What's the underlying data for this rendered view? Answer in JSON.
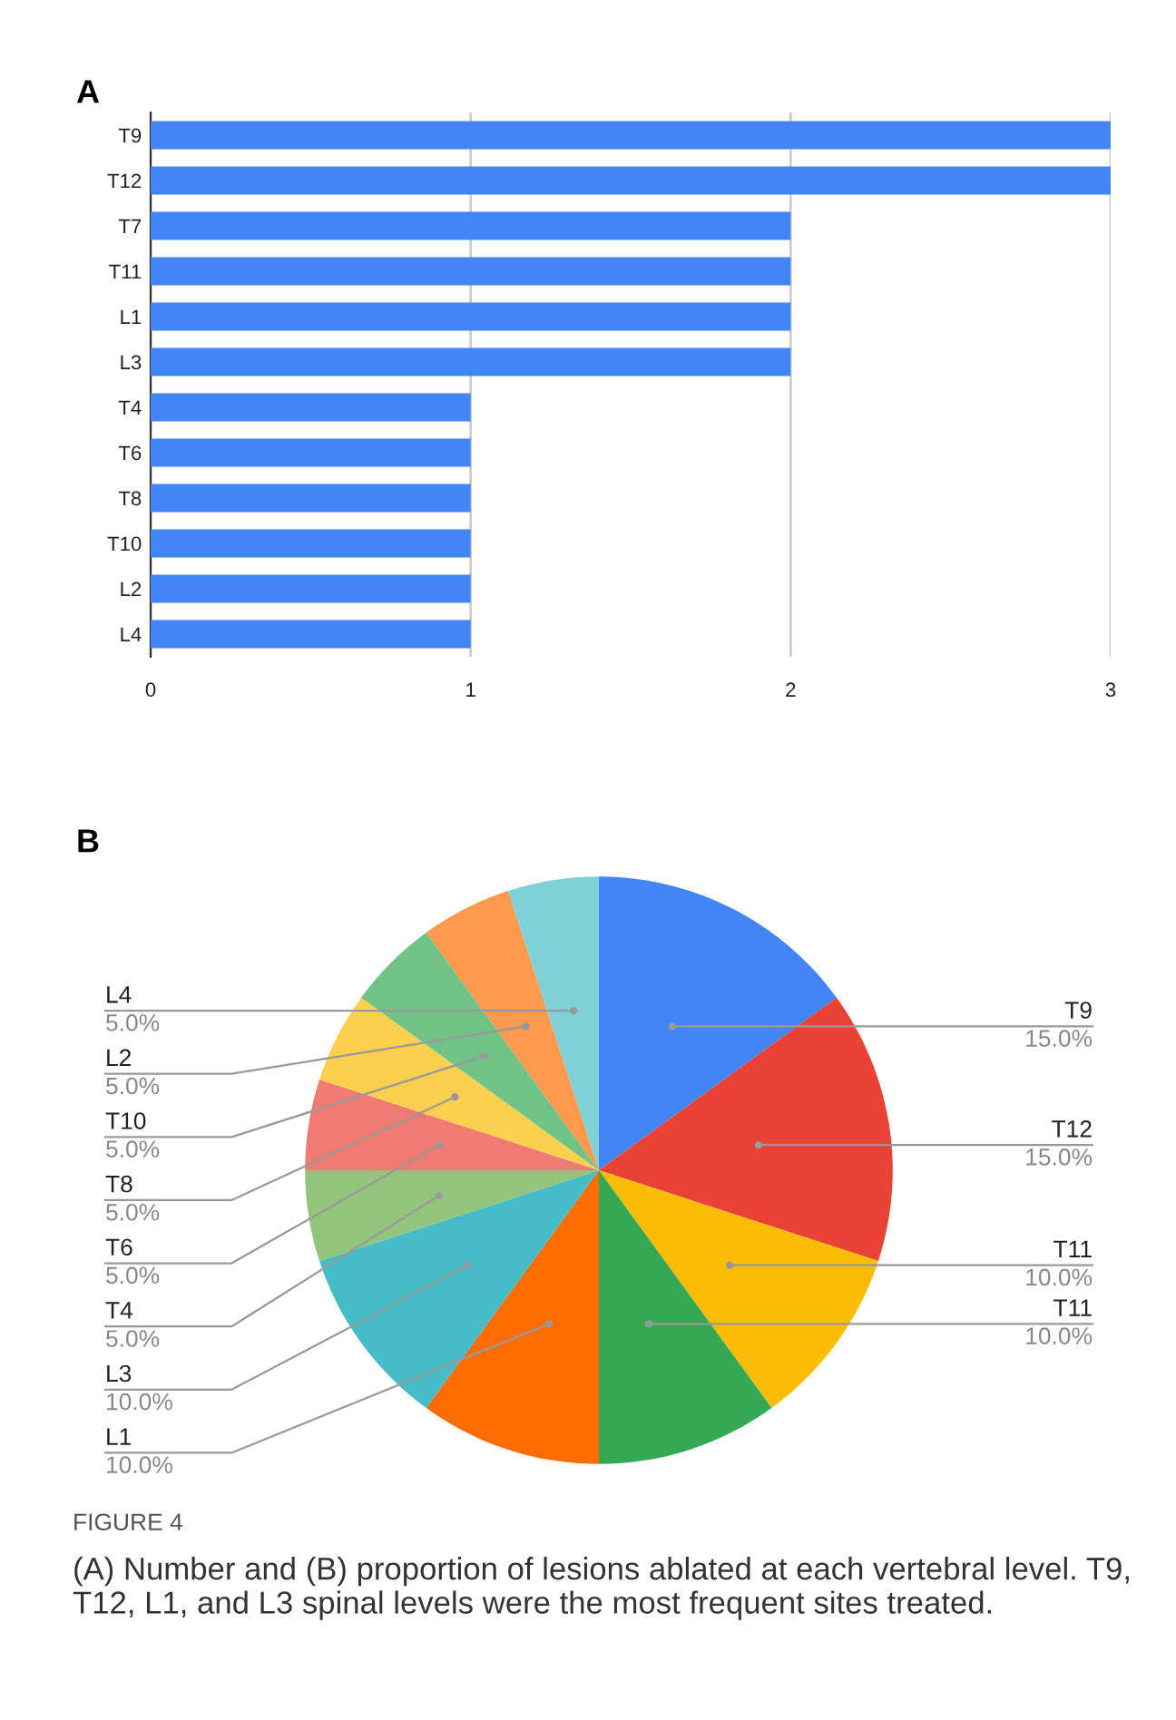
{
  "chart_data": [
    {
      "type": "bar",
      "title": "A",
      "orientation": "horizontal",
      "categories": [
        "T9",
        "T12",
        "T7",
        "T11",
        "L1",
        "L3",
        "T4",
        "T6",
        "T8",
        "T10",
        "L2",
        "L4"
      ],
      "values": [
        3,
        3,
        2,
        2,
        2,
        2,
        1,
        1,
        1,
        1,
        1,
        1
      ],
      "color": "#4285f4",
      "xlim": [
        0,
        3
      ],
      "xticks": [
        0,
        1,
        2,
        3
      ],
      "grid": "x",
      "legend": false
    },
    {
      "type": "pie",
      "title": "B",
      "categories": [
        "T9",
        "T12",
        "T11",
        "T11",
        "L1",
        "L3",
        "T4",
        "T6",
        "T8",
        "T10",
        "L2",
        "L4"
      ],
      "values": [
        15,
        15,
        10,
        10,
        10,
        10,
        5,
        5,
        5,
        5,
        5,
        5
      ],
      "value_labels": [
        "15.0%",
        "15.0%",
        "10.0%",
        "10.0%",
        "10.0%",
        "10.0%",
        "5.0%",
        "5.0%",
        "5.0%",
        "5.0%",
        "5.0%",
        "5.0%"
      ],
      "colors": [
        "#4285f4",
        "#ea4335",
        "#fbbc04",
        "#34a853",
        "#ff6d01",
        "#46bdc6",
        "#93c47d",
        "#f07b72",
        "#fcd04f",
        "#71c287",
        "#ff994d",
        "#7ed1d7"
      ],
      "legend": false,
      "annotations": [
        "FIGURE 4",
        "(A) Number and (B) proportion of lesions ablated at each vertebral level. T9, T12, L1, and L3 spinal levels were the most frequent sites treated."
      ]
    }
  ]
}
